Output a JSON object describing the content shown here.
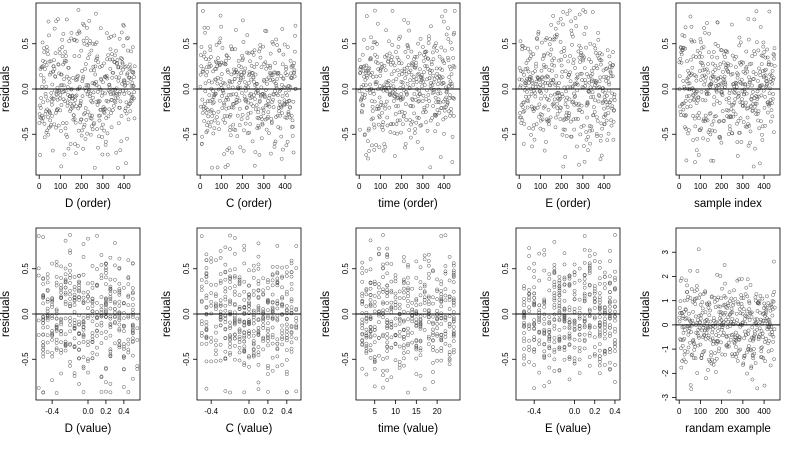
{
  "figure": {
    "grid": false
  },
  "chart_data": [
    {
      "type": "scatter",
      "xlabel": "D (order)",
      "ylabel": "residuals",
      "xlim": [
        -15,
        475
      ],
      "ylim": [
        -0.95,
        0.95
      ],
      "xticks": [
        0,
        100,
        200,
        300,
        400
      ],
      "xtick_labels": [
        "0",
        "100",
        "200",
        "300",
        "400"
      ],
      "yticks": [
        -0.5,
        0.0,
        0.5
      ],
      "ytick_labels": [
        "-0.5",
        "0.0",
        "0.5"
      ],
      "reference_line_y": 0,
      "n_points": 450,
      "x_kind": "order",
      "y_sd": 0.33,
      "x_center": 0.0,
      "seed": 11
    },
    {
      "type": "scatter",
      "xlabel": "C (order)",
      "ylabel": "residuals",
      "xlim": [
        -15,
        475
      ],
      "ylim": [
        -0.95,
        0.95
      ],
      "xticks": [
        0,
        100,
        200,
        300,
        400
      ],
      "xtick_labels": [
        "0",
        "100",
        "200",
        "300",
        "400"
      ],
      "yticks": [
        -0.5,
        0.0,
        0.5
      ],
      "ytick_labels": [
        "-0.5",
        "0.0",
        "0.5"
      ],
      "reference_line_y": 0,
      "n_points": 450,
      "x_kind": "order",
      "y_sd": 0.33,
      "x_center": 0.0,
      "seed": 22
    },
    {
      "type": "scatter",
      "xlabel": "time (order)",
      "ylabel": "residuals",
      "xlim": [
        -15,
        475
      ],
      "ylim": [
        -0.95,
        0.95
      ],
      "xticks": [
        0,
        100,
        200,
        300,
        400
      ],
      "xtick_labels": [
        "0",
        "100",
        "200",
        "300",
        "400"
      ],
      "yticks": [
        -0.5,
        0.0,
        0.5
      ],
      "ytick_labels": [
        "-0.5",
        "0.0",
        "0.5"
      ],
      "reference_line_y": 0,
      "n_points": 450,
      "x_kind": "order",
      "y_sd": 0.33,
      "x_center": 0.0,
      "seed": 33
    },
    {
      "type": "scatter",
      "xlabel": "E (order)",
      "ylabel": "residuals",
      "xlim": [
        -15,
        475
      ],
      "ylim": [
        -0.95,
        0.95
      ],
      "xticks": [
        0,
        100,
        200,
        300,
        400
      ],
      "xtick_labels": [
        "0",
        "100",
        "200",
        "300",
        "400"
      ],
      "yticks": [
        -0.5,
        0.0,
        0.5
      ],
      "ytick_labels": [
        "-0.5",
        "0.0",
        "0.5"
      ],
      "reference_line_y": 0,
      "n_points": 450,
      "x_kind": "order",
      "y_sd": 0.33,
      "x_center": 0.0,
      "seed": 44
    },
    {
      "type": "scatter",
      "xlabel": "sample index",
      "ylabel": "residuals",
      "xlim": [
        -15,
        475
      ],
      "ylim": [
        -0.95,
        0.95
      ],
      "xticks": [
        0,
        100,
        200,
        300,
        400
      ],
      "xtick_labels": [
        "0",
        "100",
        "200",
        "300",
        "400"
      ],
      "yticks": [
        -0.5,
        0.0,
        0.5
      ],
      "ytick_labels": [
        "-0.5",
        "0.0",
        "0.5"
      ],
      "reference_line_y": 0,
      "n_points": 450,
      "x_kind": "order",
      "y_sd": 0.33,
      "x_center": 0.0,
      "seed": 55
    },
    {
      "type": "scatter",
      "xlabel": "D (value)",
      "ylabel": "residuals",
      "xlim": [
        -0.58,
        0.58
      ],
      "ylim": [
        -0.95,
        0.95
      ],
      "xticks": [
        -0.4,
        0.0,
        0.2,
        0.4
      ],
      "xtick_labels": [
        "-0.4",
        "0.0",
        "0.2",
        "0.4"
      ],
      "yticks": [
        -0.5,
        0.0,
        0.5
      ],
      "ytick_labels": [
        "-0.5",
        "0.0",
        "0.5"
      ],
      "reference_line_y": 0,
      "n_points": 450,
      "x_kind": "value",
      "y_sd": 0.33,
      "x_center": 0.0,
      "seed": 66
    },
    {
      "type": "scatter",
      "xlabel": "C (value)",
      "ylabel": "residuals",
      "xlim": [
        -0.55,
        0.55
      ],
      "ylim": [
        -0.95,
        0.95
      ],
      "xticks": [
        -0.4,
        0.0,
        0.2,
        0.4
      ],
      "xtick_labels": [
        "-0.4",
        "0.0",
        "0.2",
        "0.4"
      ],
      "yticks": [
        -0.5,
        0.0,
        0.5
      ],
      "ytick_labels": [
        "-0.5",
        "0.0",
        "0.5"
      ],
      "reference_line_y": 0,
      "n_points": 450,
      "x_kind": "value",
      "y_sd": 0.33,
      "x_center": 0.0,
      "seed": 77
    },
    {
      "type": "scatter",
      "xlabel": "time (value)",
      "ylabel": "residuals",
      "xlim": [
        0.5,
        25.5
      ],
      "ylim": [
        -0.95,
        0.95
      ],
      "xticks": [
        5,
        10,
        15,
        20
      ],
      "xtick_labels": [
        "5",
        "10",
        "15",
        "20"
      ],
      "yticks": [
        -0.5,
        0.0,
        0.5
      ],
      "ytick_labels": [
        "-0.5",
        "0.0",
        "0.5"
      ],
      "reference_line_y": 0,
      "n_points": 450,
      "x_kind": "value",
      "y_sd": 0.33,
      "x_center": 13.0,
      "seed": 88
    },
    {
      "type": "scatter",
      "xlabel": "E (value)",
      "ylabel": "residuals",
      "xlim": [
        -0.58,
        0.45
      ],
      "ylim": [
        -0.95,
        0.95
      ],
      "xticks": [
        -0.4,
        0.0,
        0.2,
        0.4
      ],
      "xtick_labels": [
        "-0.4",
        "0.0",
        "0.2",
        "0.4"
      ],
      "yticks": [
        -0.5,
        0.0,
        0.5
      ],
      "ytick_labels": [
        "-0.5",
        "0.0",
        "0.5"
      ],
      "reference_line_y": 0,
      "n_points": 450,
      "x_kind": "value",
      "y_sd": 0.33,
      "x_center": -0.05,
      "seed": 99
    },
    {
      "type": "scatter",
      "xlabel": "randam example",
      "ylabel": "residuals",
      "xlim": [
        -15,
        475
      ],
      "ylim": [
        -3.1,
        4.0
      ],
      "xticks": [
        0,
        100,
        200,
        300,
        400
      ],
      "xtick_labels": [
        "0",
        "100",
        "200",
        "300",
        "400"
      ],
      "yticks": [
        -3,
        -2,
        -1,
        0,
        1,
        2,
        3
      ],
      "ytick_labels": [
        "-3",
        "-2",
        "-1",
        "0",
        "1",
        "2",
        "3"
      ],
      "reference_line_y": 0,
      "n_points": 450,
      "x_kind": "order",
      "y_sd": 1.0,
      "x_center": 0.0,
      "seed": 123
    }
  ]
}
